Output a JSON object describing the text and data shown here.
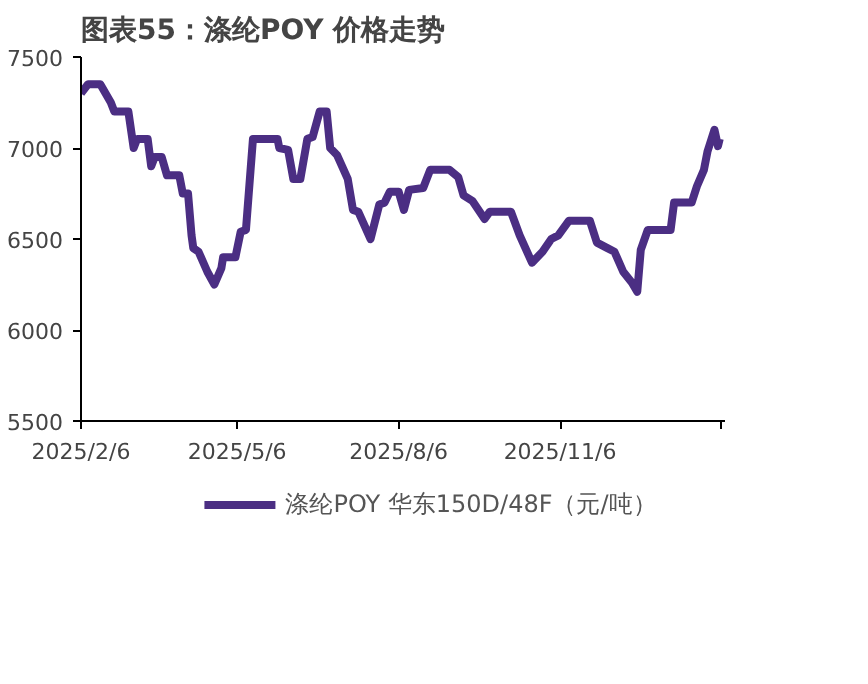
{
  "chart_data": {
    "type": "line",
    "title": "图表55：涤纶POY 价格走势",
    "legend": "bottom",
    "grid": false,
    "marker": "none",
    "line_style": "solid",
    "xlim": [
      "2025-02-06",
      "2026-02-08"
    ],
    "xticks": [
      {
        "value": "2025-02-06",
        "label": "2025/2/6"
      },
      {
        "value": "2025-05-06",
        "label": "2025/5/6"
      },
      {
        "value": "2025-08-06",
        "label": "2025/8/6"
      },
      {
        "value": "2025-11-06",
        "label": "2025/11/6"
      },
      {
        "value": "2026-02-06",
        "label": null
      }
    ],
    "ylim": [
      5500,
      7500
    ],
    "yticks": [
      5500,
      6000,
      6500,
      7000,
      7500
    ],
    "series": [
      {
        "name": "涤纶POY 华东150D/48F（元/吨）",
        "color": "#4b2e83",
        "x": [
          "2025-02-06",
          "2025-02-10",
          "2025-02-17",
          "2025-02-23",
          "2025-02-25",
          "2025-03-05",
          "2025-03-08",
          "2025-03-10",
          "2025-03-16",
          "2025-03-18",
          "2025-03-20",
          "2025-03-24",
          "2025-03-27",
          "2025-04-03",
          "2025-04-05",
          "2025-04-08",
          "2025-04-10",
          "2025-04-11",
          "2025-04-14",
          "2025-04-19",
          "2025-04-23",
          "2025-04-27",
          "2025-04-28",
          "2025-05-05",
          "2025-05-08",
          "2025-05-11",
          "2025-05-15",
          "2025-05-29",
          "2025-05-30",
          "2025-06-04",
          "2025-06-07",
          "2025-06-11",
          "2025-06-15",
          "2025-06-18",
          "2025-06-22",
          "2025-06-26",
          "2025-06-28",
          "2025-07-02",
          "2025-07-08",
          "2025-07-11",
          "2025-07-14",
          "2025-07-21",
          "2025-07-26",
          "2025-07-29",
          "2025-08-01",
          "2025-08-06",
          "2025-08-09",
          "2025-08-12",
          "2025-08-20",
          "2025-08-24",
          "2025-09-04",
          "2025-09-09",
          "2025-09-12",
          "2025-09-17",
          "2025-09-24",
          "2025-09-27",
          "2025-10-09",
          "2025-10-14",
          "2025-10-21",
          "2025-10-27",
          "2025-11-01",
          "2025-11-05",
          "2025-11-11",
          "2025-11-23",
          "2025-11-27",
          "2025-12-03",
          "2025-12-07",
          "2025-12-12",
          "2025-12-17",
          "2025-12-20",
          "2025-12-22",
          "2025-12-26",
          "2026-01-08",
          "2026-01-10",
          "2026-01-20",
          "2026-01-23",
          "2026-01-27",
          "2026-01-29",
          "2026-02-02",
          "2026-02-04",
          "2026-02-05"
        ],
        "values": [
          7300,
          7350,
          7350,
          7250,
          7200,
          7200,
          7000,
          7050,
          7050,
          6900,
          6950,
          6950,
          6850,
          6850,
          6750,
          6750,
          6520,
          6450,
          6430,
          6320,
          6250,
          6340,
          6400,
          6400,
          6540,
          6550,
          7050,
          7050,
          7000,
          6990,
          6830,
          6830,
          7050,
          7060,
          7200,
          7200,
          7000,
          6960,
          6830,
          6660,
          6650,
          6500,
          6690,
          6700,
          6760,
          6760,
          6660,
          6770,
          6780,
          6880,
          6880,
          6840,
          6740,
          6710,
          6610,
          6650,
          6650,
          6520,
          6370,
          6430,
          6500,
          6520,
          6600,
          6600,
          6480,
          6450,
          6430,
          6320,
          6260,
          6210,
          6440,
          6550,
          6550,
          6700,
          6700,
          6790,
          6880,
          6980,
          7100,
          7010,
          7050
        ]
      }
    ]
  }
}
